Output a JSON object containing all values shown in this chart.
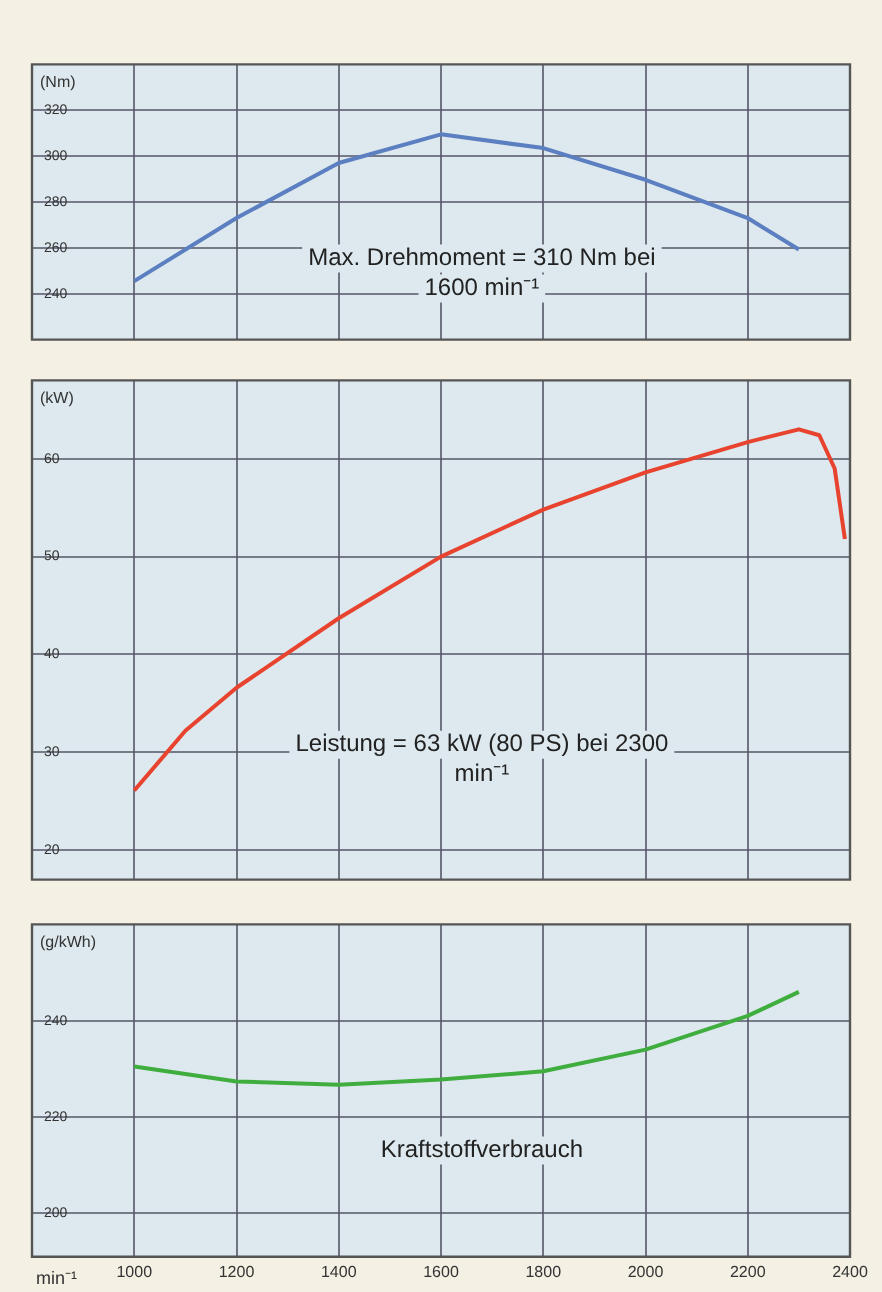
{
  "chart_data": [
    {
      "type": "line",
      "ylabel": "(Nm)",
      "x": [
        1000,
        1200,
        1400,
        1600,
        1800,
        2000,
        2200,
        2300
      ],
      "xlim": [
        800,
        2400
      ],
      "xticks": [
        1000,
        1200,
        1400,
        1600,
        1800,
        2000,
        2200,
        2400
      ],
      "ylim": [
        220,
        340
      ],
      "yticks": [
        240,
        260,
        280,
        300,
        320
      ],
      "tick_labels": "y",
      "grid": true,
      "legend": false,
      "marker": "none",
      "series": [
        {
          "color": "#5b7fc0",
          "values": [
            245.5,
            273,
            297,
            309.5,
            303.5,
            289.7,
            273,
            259.3
          ]
        }
      ],
      "annotations": [
        "Max. Drehmoment = 310 Nm bei 1600 min⁻¹"
      ]
    },
    {
      "type": "line",
      "ylabel": "(kW)",
      "x": [
        1000,
        1100,
        1200,
        1400,
        1600,
        1800,
        2000,
        2200,
        2300,
        2340,
        2370,
        2390
      ],
      "xlim": [
        800,
        2400
      ],
      "xticks": [
        1000,
        1200,
        1400,
        1600,
        1800,
        2000,
        2200,
        2400
      ],
      "ylim": [
        17,
        68
      ],
      "yticks": [
        20,
        30,
        40,
        50,
        60
      ],
      "tick_labels": "y",
      "grid": true,
      "legend": false,
      "marker": "none",
      "series": [
        {
          "color": "#e8432e",
          "values": [
            26.1,
            32.2,
            36.6,
            43.7,
            50,
            54.8,
            58.6,
            61.7,
            63,
            62.4,
            59,
            51.8
          ]
        }
      ],
      "annotations": [
        "Leistung = 63 kW (80 PS) bei 2300 min⁻¹"
      ]
    },
    {
      "type": "line",
      "ylabel": "(g/kWh)",
      "xlabel": "min⁻¹",
      "x": [
        1000,
        1200,
        1400,
        1600,
        1800,
        2000,
        2200,
        2300
      ],
      "xlim": [
        800,
        2400
      ],
      "xticks": [
        1000,
        1200,
        1400,
        1600,
        1800,
        2000,
        2200,
        2400
      ],
      "ylim": [
        191,
        260
      ],
      "yticks": [
        200,
        220,
        240
      ],
      "grid": true,
      "legend": false,
      "marker": "none",
      "series": [
        {
          "color": "#3fae3f",
          "values": [
            230.5,
            227.4,
            226.7,
            227.8,
            229.5,
            234,
            241,
            246
          ]
        }
      ],
      "annotations": [
        "Kraftstoffverbrauch"
      ]
    }
  ]
}
